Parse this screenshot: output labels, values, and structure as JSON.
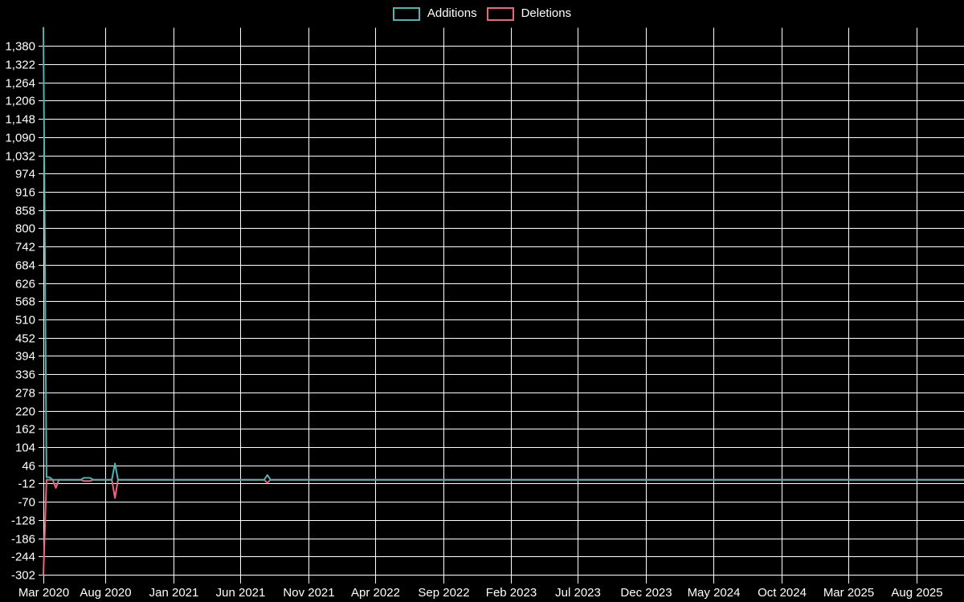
{
  "chart_data": {
    "type": "line",
    "title": "",
    "background_color": "#000000",
    "grid_color": "#ffffff",
    "text_color": "#ffffff",
    "grid": true,
    "legend_position": "top-center",
    "ylim": [
      -302,
      1438
    ],
    "y_step": 58,
    "x_range": [
      "Mar 2020",
      "Aug 2025"
    ],
    "y_ticks": [
      {
        "label": "1,380",
        "value": 1380
      },
      {
        "label": "1,322",
        "value": 1322
      },
      {
        "label": "1,264",
        "value": 1264
      },
      {
        "label": "1,206",
        "value": 1206
      },
      {
        "label": "1,148",
        "value": 1148
      },
      {
        "label": "1,090",
        "value": 1090
      },
      {
        "label": "1,032",
        "value": 1032
      },
      {
        "label": "974",
        "value": 974
      },
      {
        "label": "916",
        "value": 916
      },
      {
        "label": "858",
        "value": 858
      },
      {
        "label": "800",
        "value": 800
      },
      {
        "label": "742",
        "value": 742
      },
      {
        "label": "684",
        "value": 684
      },
      {
        "label": "626",
        "value": 626
      },
      {
        "label": "568",
        "value": 568
      },
      {
        "label": "510",
        "value": 510
      },
      {
        "label": "452",
        "value": 452
      },
      {
        "label": "394",
        "value": 394
      },
      {
        "label": "336",
        "value": 336
      },
      {
        "label": "278",
        "value": 278
      },
      {
        "label": "220",
        "value": 220
      },
      {
        "label": "162",
        "value": 162
      },
      {
        "label": "104",
        "value": 104
      },
      {
        "label": "46",
        "value": 46
      },
      {
        "label": "-12",
        "value": -12
      },
      {
        "label": "-70",
        "value": -70
      },
      {
        "label": "-128",
        "value": -128
      },
      {
        "label": "-186",
        "value": -186
      },
      {
        "label": "-244",
        "value": -244
      },
      {
        "label": "-302",
        "value": -302
      }
    ],
    "x_ticks": [
      {
        "label": "Mar 2020",
        "date": "2020-03-15"
      },
      {
        "label": "Aug 2020",
        "date": "2020-08-01"
      },
      {
        "label": "Jan 2021",
        "date": "2021-01-01"
      },
      {
        "label": "Jun 2021",
        "date": "2021-06-01"
      },
      {
        "label": "Nov 2021",
        "date": "2021-11-01"
      },
      {
        "label": "Apr 2022",
        "date": "2022-04-01"
      },
      {
        "label": "Sep 2022",
        "date": "2022-09-01"
      },
      {
        "label": "Feb 2023",
        "date": "2023-02-01"
      },
      {
        "label": "Jul 2023",
        "date": "2023-07-01"
      },
      {
        "label": "Dec 2023",
        "date": "2023-12-01"
      },
      {
        "label": "May 2024",
        "date": "2024-05-01"
      },
      {
        "label": "Oct 2024",
        "date": "2024-10-01"
      },
      {
        "label": "Mar 2025",
        "date": "2025-03-01"
      },
      {
        "label": "Aug 2025",
        "date": "2025-08-01"
      }
    ],
    "series": [
      {
        "name": "Deletions",
        "color": "#ec647e",
        "points": [
          {
            "date": "2020-03-15",
            "value": -302
          },
          {
            "date": "2020-03-22",
            "value": 0
          },
          {
            "date": "2020-04-05",
            "value": 0
          },
          {
            "date": "2020-04-12",
            "value": -26
          },
          {
            "date": "2020-04-19",
            "value": 0
          },
          {
            "date": "2020-06-07",
            "value": 0
          },
          {
            "date": "2020-06-14",
            "value": -4
          },
          {
            "date": "2020-06-28",
            "value": -4
          },
          {
            "date": "2020-07-05",
            "value": 0
          },
          {
            "date": "2020-08-16",
            "value": 0
          },
          {
            "date": "2020-08-23",
            "value": -58
          },
          {
            "date": "2020-08-30",
            "value": 0
          },
          {
            "date": "2021-07-25",
            "value": 0
          },
          {
            "date": "2021-08-01",
            "value": -10
          },
          {
            "date": "2021-08-08",
            "value": 0
          },
          {
            "date": "2025-11-15",
            "value": 0
          }
        ]
      },
      {
        "name": "Additions",
        "color": "#4fb3b3",
        "points": [
          {
            "date": "2020-03-15",
            "value": 1438
          },
          {
            "date": "2020-03-22",
            "value": 8
          },
          {
            "date": "2020-03-29",
            "value": 8
          },
          {
            "date": "2020-04-05",
            "value": 0
          },
          {
            "date": "2020-06-07",
            "value": 0
          },
          {
            "date": "2020-06-14",
            "value": 6
          },
          {
            "date": "2020-06-28",
            "value": 6
          },
          {
            "date": "2020-07-05",
            "value": 0
          },
          {
            "date": "2020-08-16",
            "value": 0
          },
          {
            "date": "2020-08-23",
            "value": 52
          },
          {
            "date": "2020-08-30",
            "value": 0
          },
          {
            "date": "2021-07-25",
            "value": 0
          },
          {
            "date": "2021-08-01",
            "value": 15
          },
          {
            "date": "2021-08-08",
            "value": 0
          },
          {
            "date": "2025-11-15",
            "value": 0
          }
        ]
      }
    ],
    "legend": {
      "items": [
        {
          "label": "Additions",
          "color": "#4fb3b3"
        },
        {
          "label": "Deletions",
          "color": "#ec647e"
        }
      ]
    }
  }
}
